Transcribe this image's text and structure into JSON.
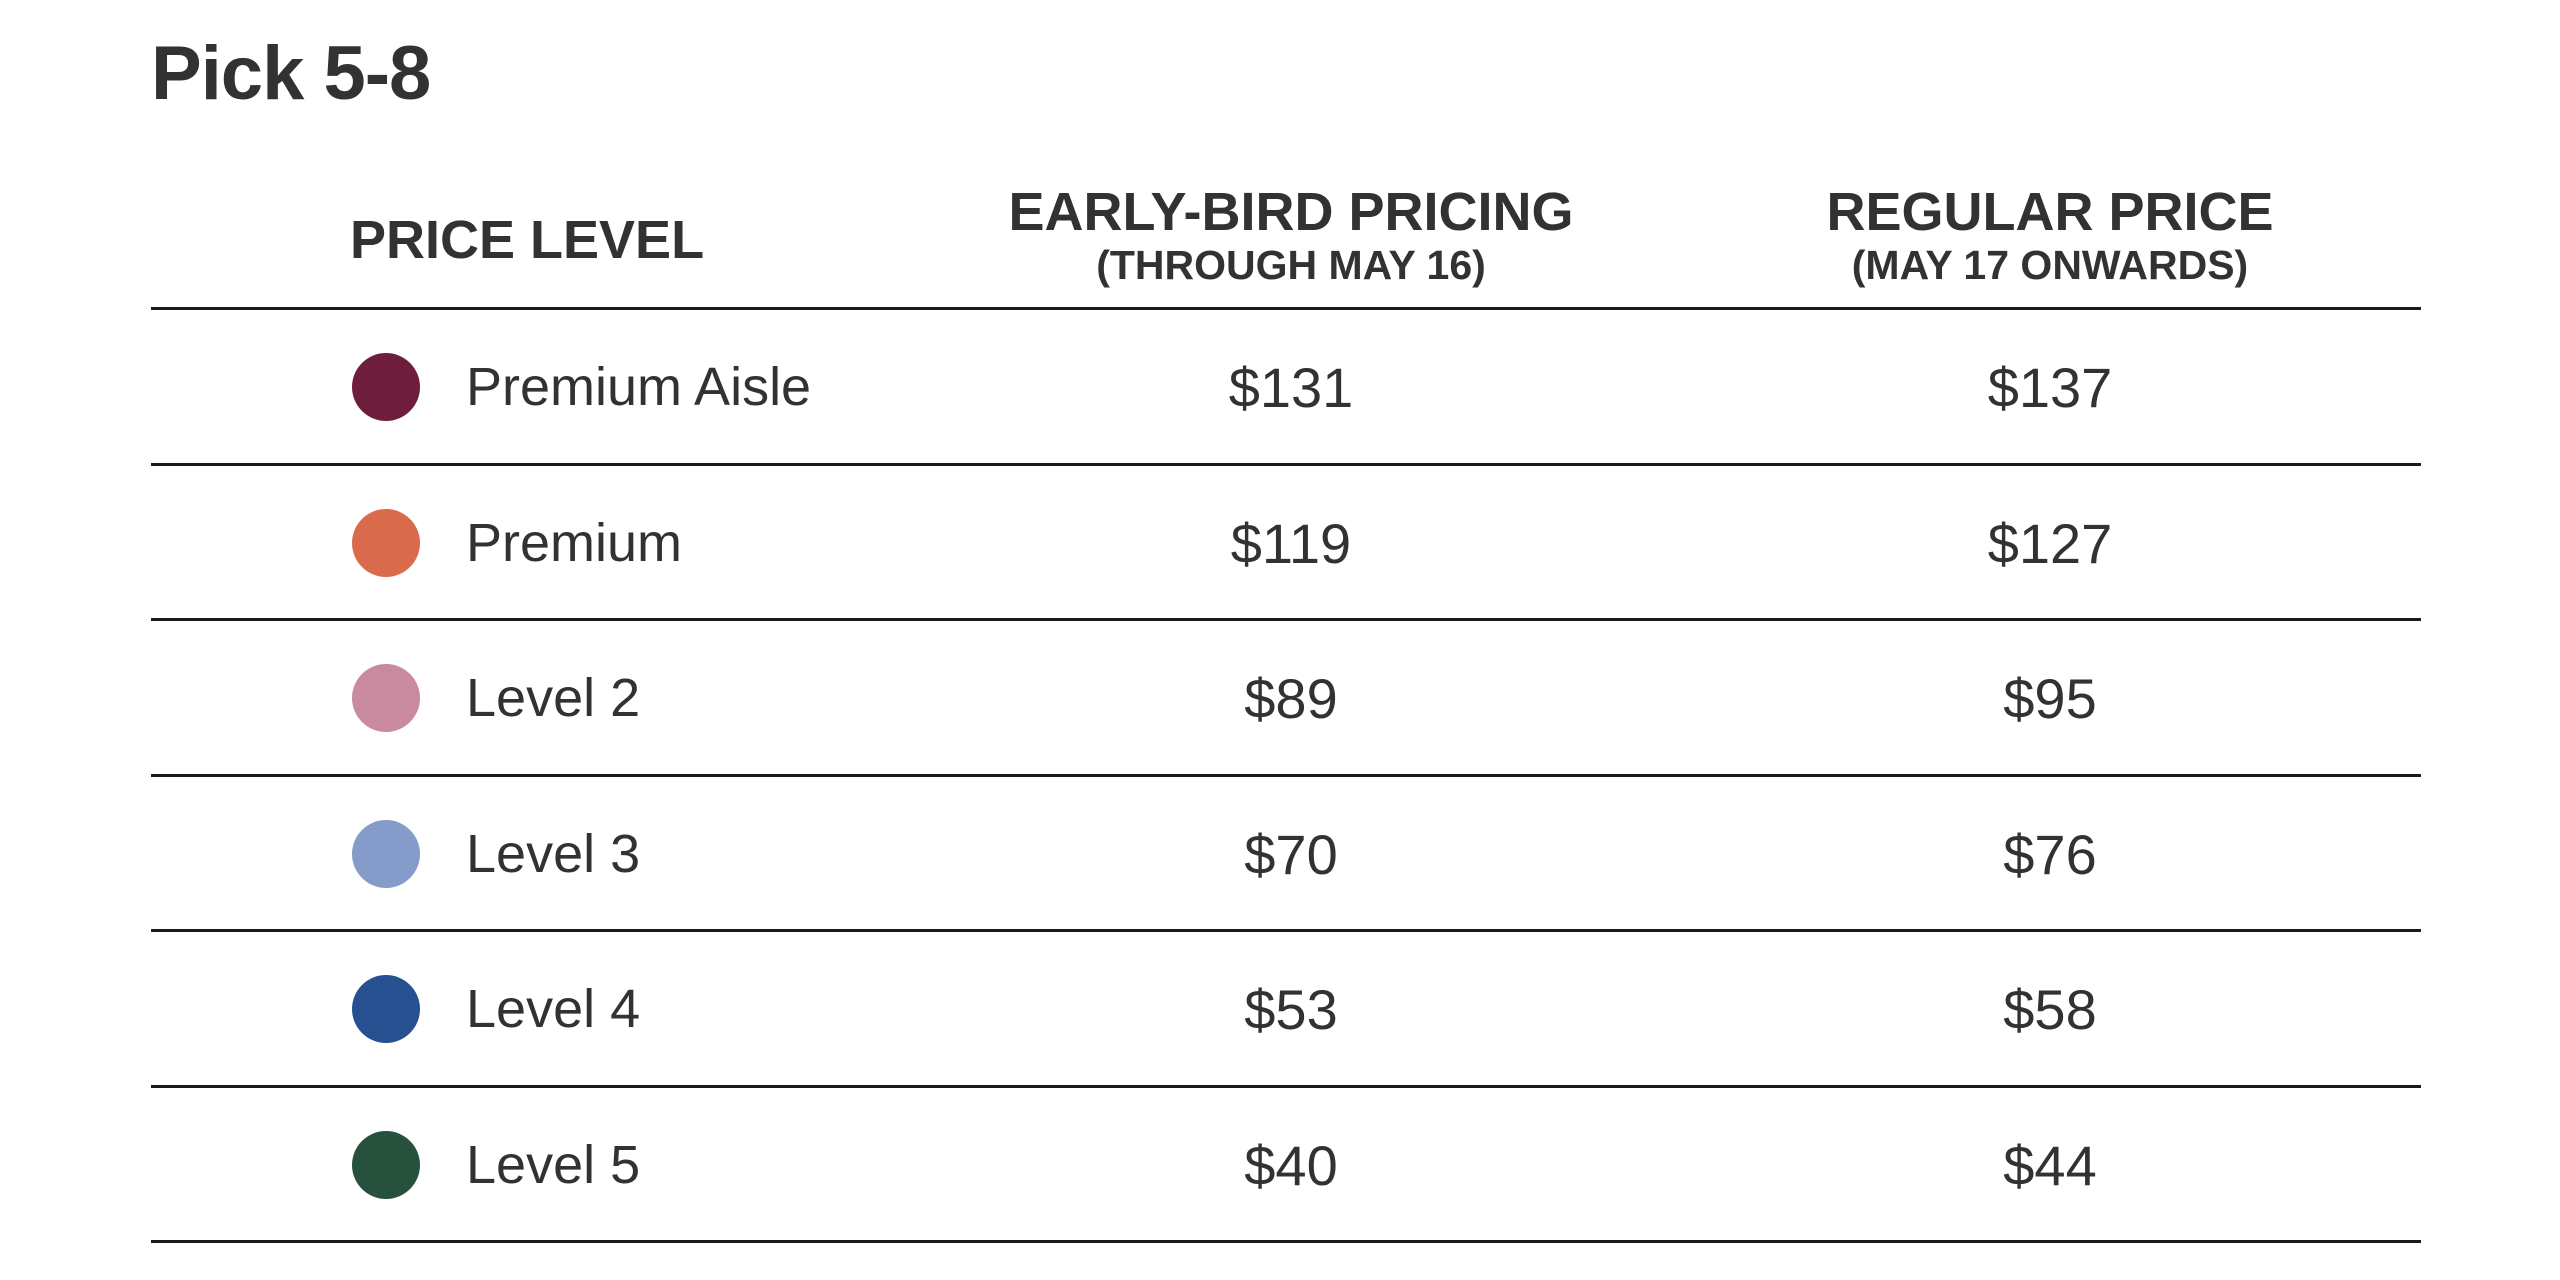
{
  "title": "Pick 5-8",
  "headers": {
    "price_level": "PRICE LEVEL",
    "early_bird": "EARLY-BIRD PRICING",
    "early_bird_sub": "(THROUGH MAY 16)",
    "regular": "REGULAR PRICE",
    "regular_sub": "(MAY 17 ONWARDS)"
  },
  "rows": [
    {
      "label": "Premium Aisle",
      "color": "#6e1e3c",
      "early": "$131",
      "regular": "$137"
    },
    {
      "label": "Premium",
      "color": "#d96a4b",
      "early": "$119",
      "regular": "$127"
    },
    {
      "label": "Level 2",
      "color": "#c98aa0",
      "early": "$89",
      "regular": "$95"
    },
    {
      "label": "Level 3",
      "color": "#859bc9",
      "early": "$70",
      "regular": "$76"
    },
    {
      "label": "Level 4",
      "color": "#26508f",
      "early": "$53",
      "regular": "$58"
    },
    {
      "label": "Level 5",
      "color": "#26513c",
      "early": "$40",
      "regular": "$44"
    }
  ]
}
